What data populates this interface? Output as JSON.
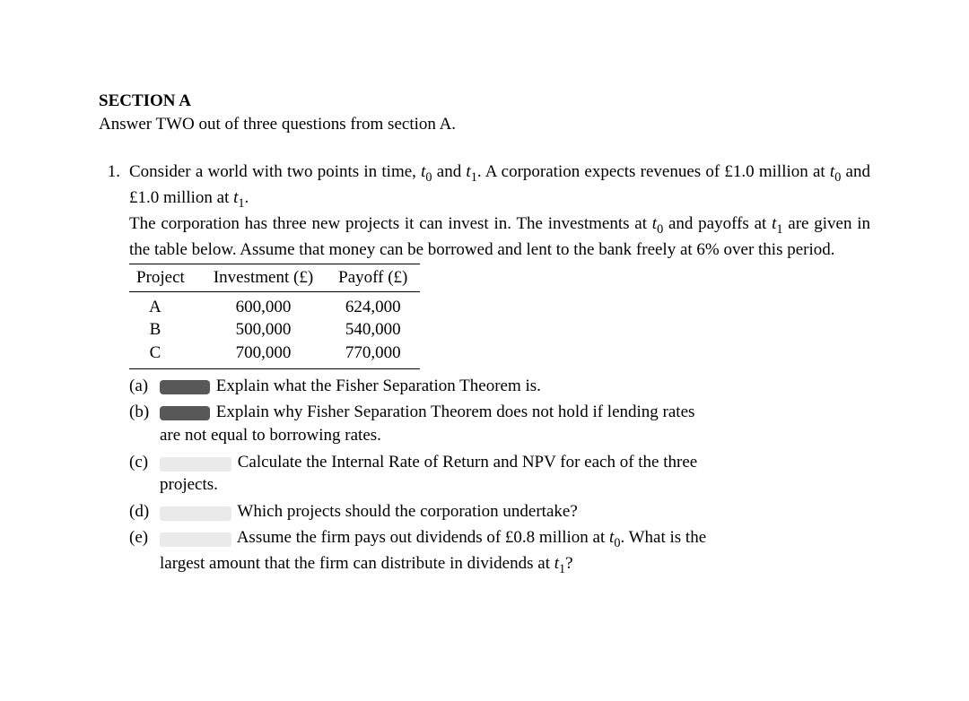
{
  "section": {
    "heading": "SECTION A",
    "instruction": "Answer TWO out of three questions from section A."
  },
  "question": {
    "number": "1.",
    "intro_line1_pre": "Consider a world with two points in time, ",
    "t0": "t",
    "t0_sub": "0",
    "and1": " and ",
    "t1": "t",
    "t1_sub": "1",
    "intro_line1_post": ". A corporation expects revenues of £1.0 million at ",
    "intro_line1_end": " and £1.0 million at ",
    "intro_line1_final": ".",
    "para2_a": "The corporation has three new projects it can invest in.  The investments at ",
    "para2_b": " and payoffs at ",
    "para2_c": " are given in the table below. Assume that money can be borrowed and lent to the bank freely at 6% over this period."
  },
  "table": {
    "columns": [
      "Project",
      "Investment (£)",
      "Payoff (£)"
    ],
    "rows": [
      [
        "A",
        "600,000",
        "624,000"
      ],
      [
        "B",
        "500,000",
        "540,000"
      ],
      [
        "C",
        "700,000",
        "770,000"
      ]
    ],
    "header_border_color": "#000000",
    "font_size": 19
  },
  "subparts": [
    {
      "label": "(a)",
      "redact_width": 56,
      "text": "Explain what the Fisher Separation Theorem is.",
      "continuation": ""
    },
    {
      "label": "(b)",
      "redact_width": 56,
      "text": "Explain why Fisher Separation Theorem does not hold if lending rates",
      "continuation": "are not equal to borrowing rates."
    },
    {
      "label": "(c)",
      "redact_width": 80,
      "text": "Calculate the Internal Rate of Return and NPV for each of the three",
      "continuation": "projects."
    },
    {
      "label": "(d)",
      "redact_width": 80,
      "text": "Which projects should the corporation undertake?",
      "continuation": ""
    },
    {
      "label": "(e)",
      "redact_width": 80,
      "text_pre": "Assume the firm pays out dividends of £0.8 million at ",
      "text_post": ". What is the",
      "continuation_pre": "largest amount that the firm can distribute in dividends at ",
      "continuation_post": "?"
    }
  ],
  "styling": {
    "background": "#ffffff",
    "text_color": "#000000",
    "font_family": "Times New Roman",
    "body_font_size": 19,
    "redact_color": "#585858",
    "marks_bg": "#eaeaea"
  }
}
